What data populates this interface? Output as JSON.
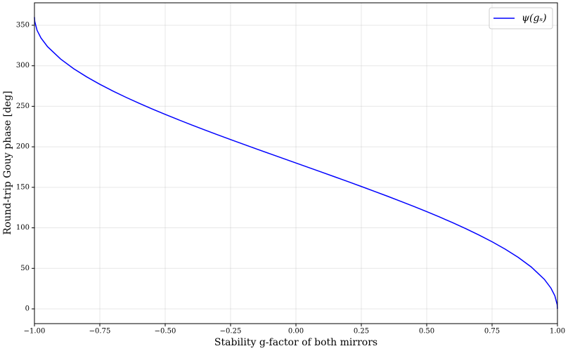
{
  "chart_data": {
    "type": "line",
    "xlabel": "Stability g-factor of both mirrors",
    "ylabel": "Round-trip Gouy phase [deg]",
    "x": [
      -1,
      -0.999,
      -0.99,
      -0.975,
      -0.95,
      -0.9,
      -0.85,
      -0.8,
      -0.75,
      -0.7,
      -0.65,
      -0.6,
      -0.55,
      -0.5,
      -0.45,
      -0.4,
      -0.35,
      -0.3,
      -0.25,
      -0.2,
      -0.15,
      -0.1,
      -0.05,
      0,
      0.05,
      0.1,
      0.15,
      0.2,
      0.25,
      0.3,
      0.35,
      0.4,
      0.45,
      0.5,
      0.55,
      0.6,
      0.65,
      0.7,
      0.75,
      0.8,
      0.85,
      0.9,
      0.95,
      0.975,
      0.99,
      0.999,
      1
    ],
    "series": [
      {
        "name": "ψ(gₛ)",
        "color": "#0000ff",
        "values": [
          360,
          354.87,
          343.78,
          334.32,
          323.61,
          308.32,
          296.42,
          286.26,
          277.18,
          268.85,
          261.08,
          253.74,
          246.73,
          240,
          233.49,
          227.16,
          220.97,
          214.92,
          208.96,
          203.07,
          197.25,
          191.48,
          185.73,
          180,
          174.27,
          168.52,
          162.75,
          156.93,
          151.04,
          145.08,
          139.03,
          132.84,
          126.51,
          120,
          113.27,
          106.26,
          98.92,
          91.15,
          82.82,
          73.74,
          63.58,
          51.68,
          36.39,
          25.68,
          16.22,
          5.13,
          0
        ]
      }
    ],
    "xlim": [
      -1,
      1
    ],
    "ylim": [
      -18.2,
      377.7
    ],
    "xticks": [
      {
        "value": -1,
        "label": "−1.00"
      },
      {
        "value": -0.75,
        "label": "−0.75"
      },
      {
        "value": -0.5,
        "label": "−0.50"
      },
      {
        "value": -0.25,
        "label": "−0.25"
      },
      {
        "value": 0,
        "label": "0.00"
      },
      {
        "value": 0.25,
        "label": "0.25"
      },
      {
        "value": 0.5,
        "label": "0.50"
      },
      {
        "value": 0.75,
        "label": "0.75"
      },
      {
        "value": 1,
        "label": "1.00"
      }
    ],
    "yticks": [
      0,
      50,
      100,
      150,
      200,
      250,
      300,
      350
    ],
    "grid": true,
    "legend": "upper right"
  }
}
